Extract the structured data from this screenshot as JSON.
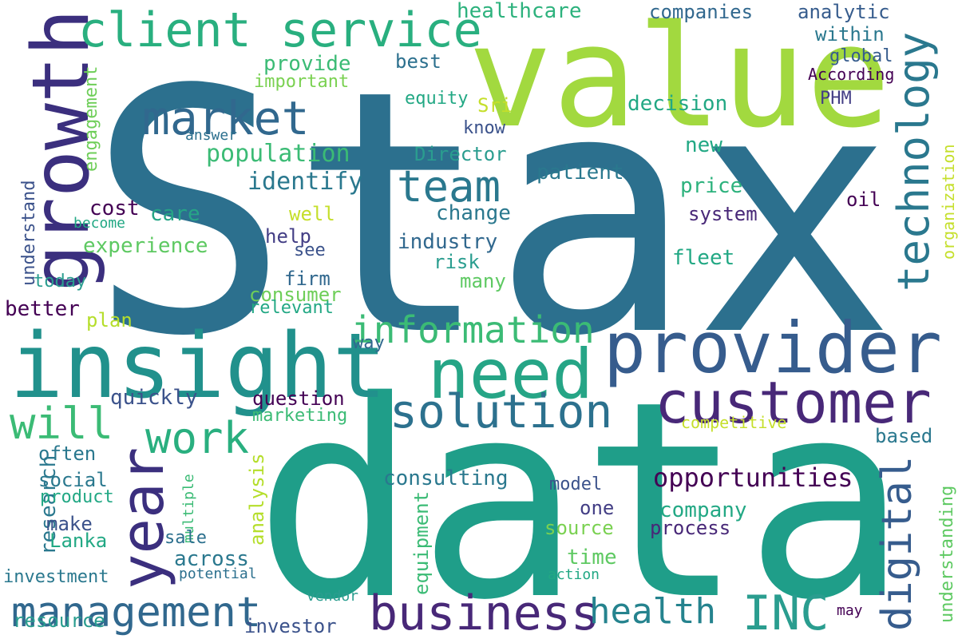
{
  "palette": [
    "#2a6f8e",
    "#2c708e",
    "#22958b",
    "#1f9e89",
    "#26a586",
    "#3bbb75",
    "#5ec962",
    "#a2d93f",
    "#c5df2b",
    "#3b528b",
    "#433e85",
    "#482878",
    "#46327e",
    "#440154",
    "#365c8d",
    "#31688e"
  ],
  "words": [
    {
      "text": "Stax",
      "color": "#2c708e"
    },
    {
      "text": "data",
      "color": "#1f9e89"
    },
    {
      "text": "value",
      "color": "#a2d93f"
    },
    {
      "text": "growth",
      "color": "#3b2f7e"
    },
    {
      "text": "insight",
      "color": "#21918c"
    },
    {
      "text": "provider",
      "color": "#365c8d"
    },
    {
      "text": "need",
      "color": "#26a586"
    },
    {
      "text": "customer",
      "color": "#482878"
    },
    {
      "text": "client service",
      "color": "#29af7f"
    },
    {
      "text": "market",
      "color": "#31688e"
    },
    {
      "text": "year",
      "color": "#3b2f7e"
    },
    {
      "text": "management",
      "color": "#31688e"
    },
    {
      "text": "business",
      "color": "#482878"
    },
    {
      "text": "team",
      "color": "#2a788e"
    },
    {
      "text": "solution",
      "color": "#2c718e"
    },
    {
      "text": "technology",
      "color": "#2a788e"
    },
    {
      "text": "information",
      "color": "#3bbb75"
    },
    {
      "text": "will",
      "color": "#3bbb75"
    },
    {
      "text": "work",
      "color": "#29af7f"
    },
    {
      "text": "INC",
      "color": "#2a9d8f"
    },
    {
      "text": "health",
      "color": "#25838e"
    },
    {
      "text": "digital",
      "color": "#365c8d"
    },
    {
      "text": "opportunities",
      "color": "#440154"
    },
    {
      "text": "population",
      "color": "#3bbb75"
    },
    {
      "text": "identify",
      "color": "#2a788e"
    },
    {
      "text": "healthcare",
      "color": "#2db27d"
    },
    {
      "text": "companies",
      "color": "#31688e"
    },
    {
      "text": "analytic",
      "color": "#365c8d"
    },
    {
      "text": "within",
      "color": "#2a788e"
    },
    {
      "text": "global",
      "color": "#365c8d"
    },
    {
      "text": "According",
      "color": "#440154"
    },
    {
      "text": "provide",
      "color": "#3bbb75"
    },
    {
      "text": "important",
      "color": "#7ad151"
    },
    {
      "text": "best",
      "color": "#2c708e"
    },
    {
      "text": "equity",
      "color": "#22a884"
    },
    {
      "text": "Sri",
      "color": "#c5df2b"
    },
    {
      "text": "decision",
      "color": "#22a884"
    },
    {
      "text": "PHM",
      "color": "#433e85"
    },
    {
      "text": "engagement",
      "color": "#6ece58"
    },
    {
      "text": "answer",
      "color": "#2c708e"
    },
    {
      "text": "know",
      "color": "#3b528b"
    },
    {
      "text": "Director",
      "color": "#2a9d8f"
    },
    {
      "text": "new",
      "color": "#22a884"
    },
    {
      "text": "patient",
      "color": "#2a788e"
    },
    {
      "text": "price",
      "color": "#2db27d"
    },
    {
      "text": "oil",
      "color": "#440154"
    },
    {
      "text": "organization",
      "color": "#c5df2b"
    },
    {
      "text": "understand",
      "color": "#3b528b"
    },
    {
      "text": "cost",
      "color": "#440154"
    },
    {
      "text": "become",
      "color": "#22a884"
    },
    {
      "text": "care",
      "color": "#26a586"
    },
    {
      "text": "well",
      "color": "#c5df2b"
    },
    {
      "text": "change",
      "color": "#2a788e"
    },
    {
      "text": "system",
      "color": "#482878"
    },
    {
      "text": "experience",
      "color": "#5ec962"
    },
    {
      "text": "help",
      "color": "#433e85"
    },
    {
      "text": "industry",
      "color": "#31688e"
    },
    {
      "text": "see",
      "color": "#3b528b"
    },
    {
      "text": "risk",
      "color": "#2a9d8f"
    },
    {
      "text": "fleet",
      "color": "#22a884"
    },
    {
      "text": "today",
      "color": "#2a9d8f"
    },
    {
      "text": "firm",
      "color": "#31688e"
    },
    {
      "text": "many",
      "color": "#5ec962"
    },
    {
      "text": "consumer",
      "color": "#6ece58"
    },
    {
      "text": "relevant",
      "color": "#22a884"
    },
    {
      "text": "better",
      "color": "#440154"
    },
    {
      "text": "plan",
      "color": "#b5de2b"
    },
    {
      "text": "way",
      "color": "#31688e"
    },
    {
      "text": "quickly",
      "color": "#3b528b"
    },
    {
      "text": "question",
      "color": "#440154"
    },
    {
      "text": "marketing",
      "color": "#3bbb75"
    },
    {
      "text": "competitive",
      "color": "#c5df2b"
    },
    {
      "text": "based",
      "color": "#2a788e"
    },
    {
      "text": "understanding",
      "color": "#5ec962"
    },
    {
      "text": "research",
      "color": "#2a788e"
    },
    {
      "text": "often",
      "color": "#2a788e"
    },
    {
      "text": "social",
      "color": "#2a788e"
    },
    {
      "text": "product",
      "color": "#22a884"
    },
    {
      "text": "multiple",
      "color": "#3bbb75"
    },
    {
      "text": "analysis",
      "color": "#b5de2b"
    },
    {
      "text": "consulting",
      "color": "#2a788e"
    },
    {
      "text": "equipment",
      "color": "#3bbb75"
    },
    {
      "text": "model",
      "color": "#3b528b"
    },
    {
      "text": "one",
      "color": "#433e85"
    },
    {
      "text": "company",
      "color": "#22a884"
    },
    {
      "text": "process",
      "color": "#482878"
    },
    {
      "text": "make",
      "color": "#3b528b"
    },
    {
      "text": "Lanka",
      "color": "#22a884"
    },
    {
      "text": "sale",
      "color": "#2c708e"
    },
    {
      "text": "source",
      "color": "#7ad151"
    },
    {
      "text": "across",
      "color": "#2a788e"
    },
    {
      "text": "time",
      "color": "#5ec962"
    },
    {
      "text": "investment",
      "color": "#2a788e"
    },
    {
      "text": "potential",
      "color": "#2c708e"
    },
    {
      "text": "action",
      "color": "#22a884"
    },
    {
      "text": "vendor",
      "color": "#2a9d8f"
    },
    {
      "text": "may",
      "color": "#440154"
    },
    {
      "text": "resource",
      "color": "#2a9d8f"
    },
    {
      "text": "investor",
      "color": "#3b528b"
    }
  ]
}
